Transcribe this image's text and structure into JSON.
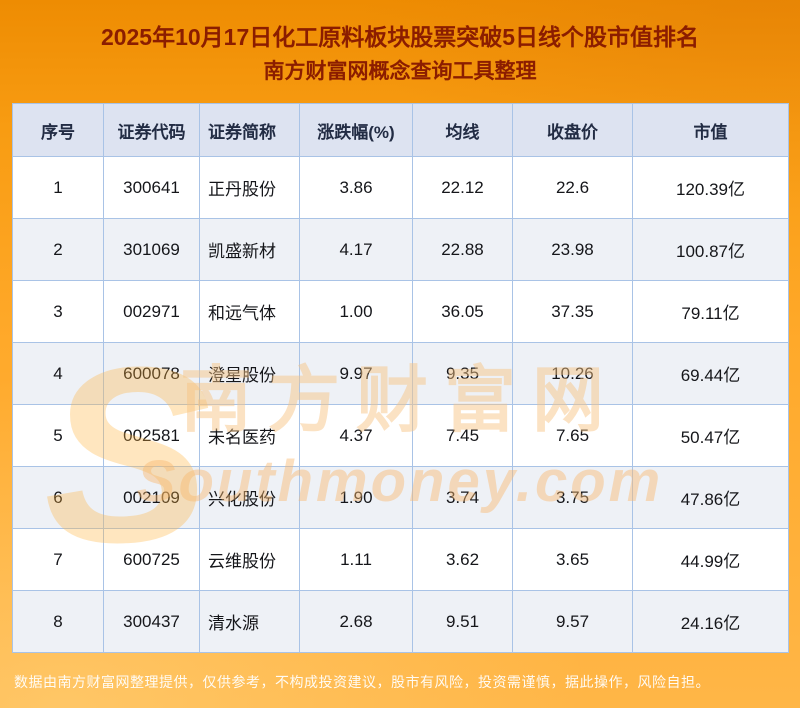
{
  "title": {
    "line1": "2025年10月17日化工原料板块股票突破5日线个股市值排名",
    "line2": "南方财富网概念查询工具整理"
  },
  "table": {
    "headers": [
      "序号",
      "证券代码",
      "证券简称",
      "涨跌幅(%)",
      "均线",
      "收盘价",
      "市值"
    ],
    "rows": [
      [
        "1",
        "300641",
        "正丹股份",
        "3.86",
        "22.12",
        "22.6",
        "120.39亿"
      ],
      [
        "2",
        "301069",
        "凯盛新材",
        "4.17",
        "22.88",
        "23.98",
        "100.87亿"
      ],
      [
        "3",
        "002971",
        "和远气体",
        "1.00",
        "36.05",
        "37.35",
        "79.11亿"
      ],
      [
        "4",
        "600078",
        "澄星股份",
        "9.97",
        "9.35",
        "10.26",
        "69.44亿"
      ],
      [
        "5",
        "002581",
        "未名医药",
        "4.37",
        "7.45",
        "7.65",
        "50.47亿"
      ],
      [
        "6",
        "002109",
        "兴化股份",
        "1.90",
        "3.74",
        "3.75",
        "47.86亿"
      ],
      [
        "7",
        "600725",
        "云维股份",
        "1.11",
        "3.62",
        "3.65",
        "44.99亿"
      ],
      [
        "8",
        "300437",
        "清水源",
        "2.68",
        "9.51",
        "9.57",
        "24.16亿"
      ]
    ]
  },
  "watermark": {
    "logo": "S",
    "cn": "南方财富网",
    "en": "Southmoney.com"
  },
  "footer": {
    "disclaimer": "数据由南方财富网整理提供，仅供参考，不构成投资建议，股市有风险，投资需谨慎，据此操作，风险自担。"
  },
  "colors": {
    "background_orange": "#ffa92a",
    "title_red": "#8b1d00",
    "header_bg": "#dde3f1",
    "border_blue": "#a9c3e6",
    "row_alt": "#eef1f6"
  },
  "chart_data": {
    "type": "table",
    "title": "2025年10月17日化工原料板块股票突破5日线个股市值排名",
    "subtitle": "南方财富网概念查询工具整理",
    "columns": [
      "序号",
      "证券代码",
      "证券简称",
      "涨跌幅(%)",
      "均线",
      "收盘价",
      "市值(亿)"
    ],
    "rows": [
      [
        1,
        "300641",
        "正丹股份",
        3.86,
        22.12,
        22.6,
        120.39
      ],
      [
        2,
        "301069",
        "凯盛新材",
        4.17,
        22.88,
        23.98,
        100.87
      ],
      [
        3,
        "002971",
        "和远气体",
        1.0,
        36.05,
        37.35,
        79.11
      ],
      [
        4,
        "600078",
        "澄星股份",
        9.97,
        9.35,
        10.26,
        69.44
      ],
      [
        5,
        "002581",
        "未名医药",
        4.37,
        7.45,
        7.65,
        50.47
      ],
      [
        6,
        "002109",
        "兴化股份",
        1.9,
        3.74,
        3.75,
        47.86
      ],
      [
        7,
        "600725",
        "云维股份",
        1.11,
        3.62,
        3.65,
        44.99
      ],
      [
        8,
        "300437",
        "清水源",
        2.68,
        9.51,
        9.57,
        24.16
      ]
    ]
  }
}
